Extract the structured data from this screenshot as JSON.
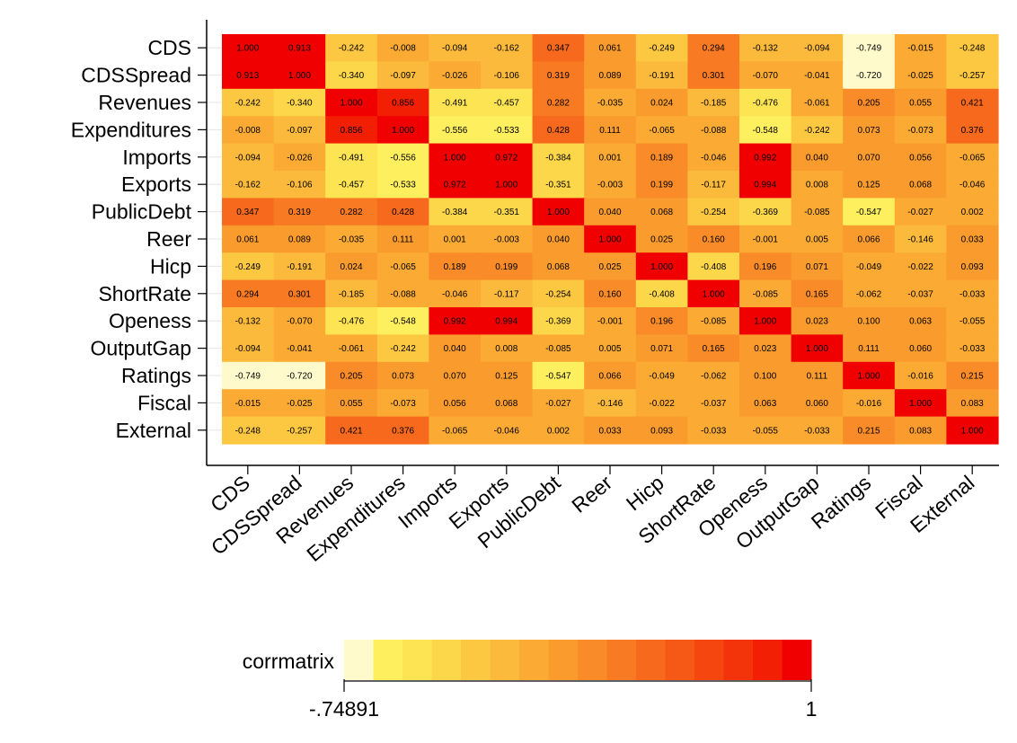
{
  "chart_data": {
    "type": "heatmap",
    "title": "",
    "xlabel": "",
    "ylabel": "",
    "variables": [
      "CDS",
      "CDSSpread",
      "Revenues",
      "Expenditures",
      "Imports",
      "Exports",
      "PublicDebt",
      "Reer",
      "Hicp",
      "ShortRate",
      "Openess",
      "OutputGap",
      "Ratings",
      "Fiscal",
      "External"
    ],
    "matrix": [
      [
        "1.000",
        "0.913",
        "-0.242",
        "-0.008",
        "-0.094",
        "-0.162",
        "0.347",
        "0.061",
        "-0.249",
        "0.294",
        "-0.132",
        "-0.094",
        "-0.749",
        "-0.015",
        "-0.248"
      ],
      [
        "0.913",
        "1.000",
        "-0.340",
        "-0.097",
        "-0.026",
        "-0.106",
        "0.319",
        "0.089",
        "-0.191",
        "0.301",
        "-0.070",
        "-0.041",
        "-0.720",
        "-0.025",
        "-0.257"
      ],
      [
        "-0.242",
        "-0.340",
        "1.000",
        "0.856",
        "-0.491",
        "-0.457",
        "0.282",
        "-0.035",
        "0.024",
        "-0.185",
        "-0.476",
        "-0.061",
        "0.205",
        "0.055",
        "0.421"
      ],
      [
        "-0.008",
        "-0.097",
        "0.856",
        "1.000",
        "-0.556",
        "-0.533",
        "0.428",
        "0.111",
        "-0.065",
        "-0.088",
        "-0.548",
        "-0.242",
        "0.073",
        "-0.073",
        "0.376"
      ],
      [
        "-0.094",
        "-0.026",
        "-0.491",
        "-0.556",
        "1.000",
        "0.972",
        "-0.384",
        "0.001",
        "0.189",
        "-0.046",
        "0.992",
        "0.040",
        "0.070",
        "0.056",
        "-0.065"
      ],
      [
        "-0.162",
        "-0.106",
        "-0.457",
        "-0.533",
        "0.972",
        "1.000",
        "-0.351",
        "-0.003",
        "0.199",
        "-0.117",
        "0.994",
        "0.008",
        "0.125",
        "0.068",
        "-0.046"
      ],
      [
        "0.347",
        "0.319",
        "0.282",
        "0.428",
        "-0.384",
        "-0.351",
        "1.000",
        "0.040",
        "0.068",
        "-0.254",
        "-0.369",
        "-0.085",
        "-0.547",
        "-0.027",
        "0.002"
      ],
      [
        "0.061",
        "0.089",
        "-0.035",
        "0.111",
        "0.001",
        "-0.003",
        "0.040",
        "1.000",
        "0.025",
        "0.160",
        "-0.001",
        "0.005",
        "0.066",
        "-0.146",
        "0.033"
      ],
      [
        "-0.249",
        "-0.191",
        "0.024",
        "-0.065",
        "0.189",
        "0.199",
        "0.068",
        "0.025",
        "1.000",
        "-0.408",
        "0.196",
        "0.071",
        "-0.049",
        "-0.022",
        "0.093"
      ],
      [
        "0.294",
        "0.301",
        "-0.185",
        "-0.088",
        "-0.046",
        "-0.117",
        "-0.254",
        "0.160",
        "-0.408",
        "1.000",
        "-0.085",
        "0.165",
        "-0.062",
        "-0.037",
        "-0.033"
      ],
      [
        "-0.132",
        "-0.070",
        "-0.476",
        "-0.548",
        "0.992",
        "0.994",
        "-0.369",
        "-0.001",
        "0.196",
        "-0.085",
        "1.000",
        "0.023",
        "0.100",
        "0.063",
        "-0.055"
      ],
      [
        "-0.094",
        "-0.041",
        "-0.061",
        "-0.242",
        "0.040",
        "0.008",
        "-0.085",
        "0.005",
        "0.071",
        "0.165",
        "0.023",
        "1.000",
        "0.111",
        "0.060",
        "-0.033"
      ],
      [
        "-0.749",
        "-0.720",
        "0.205",
        "0.073",
        "0.070",
        "0.125",
        "-0.547",
        "0.066",
        "-0.049",
        "-0.062",
        "0.100",
        "0.111",
        "1.000",
        "-0.016",
        "0.215"
      ],
      [
        "-0.015",
        "-0.025",
        "0.055",
        "-0.073",
        "0.056",
        "0.068",
        "-0.027",
        "-0.146",
        "-0.022",
        "-0.037",
        "0.063",
        "0.060",
        "-0.016",
        "1.000",
        "0.083"
      ],
      [
        "-0.248",
        "-0.257",
        "0.421",
        "0.376",
        "-0.065",
        "-0.046",
        "0.002",
        "0.033",
        "0.093",
        "-0.033",
        "-0.055",
        "-0.033",
        "0.215",
        "0.083",
        "1.000"
      ]
    ],
    "color_scale": [
      "#fffacc",
      "#fdef5e",
      "#fde453",
      "#fcd74a",
      "#fcc842",
      "#fbba3b",
      "#fbab34",
      "#fa9b2e",
      "#f98b28",
      "#f87a22",
      "#f7691c",
      "#f65816",
      "#f54610",
      "#f3330a",
      "#f21f05",
      "#f00000"
    ],
    "legend": {
      "title": "corrmatrix",
      "min_label": "-.74891",
      "max_label": "1",
      "min": -0.74891,
      "max": 1
    },
    "grid": true
  }
}
